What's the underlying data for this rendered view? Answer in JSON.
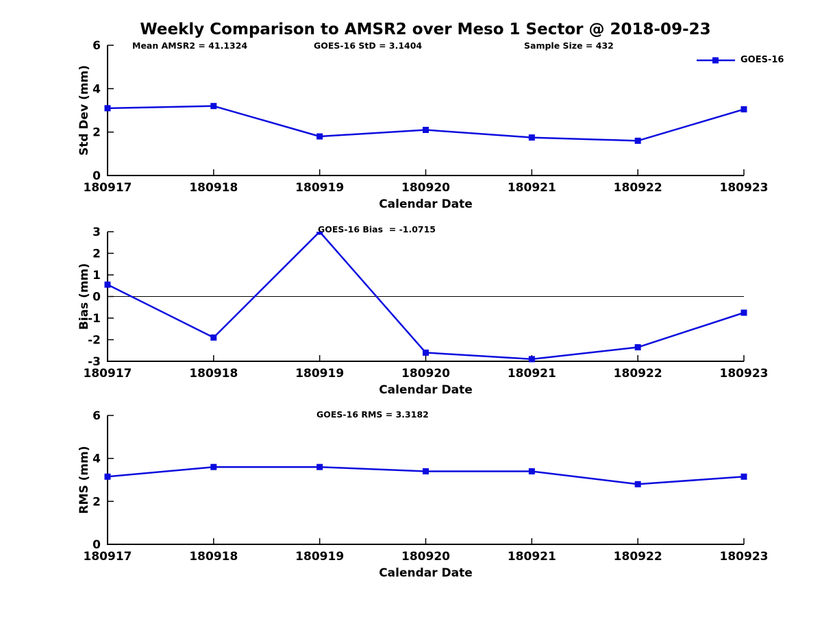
{
  "figure": {
    "title": "Weekly Comparison to AMSR2 over Meso 1 Sector @ 2018-09-23",
    "background_color": "#ffffff",
    "line_color": "#0b0bdf",
    "axis_color": "#000000"
  },
  "legend": {
    "label": "GOES-16",
    "position": "top-right",
    "marker": "filled-square",
    "color": "#0b0bdf"
  },
  "annotations": {
    "mean_amsr2": "Mean AMSR2 = 41.1324",
    "goes16_std": "GOES-16 StD = 3.1404",
    "sample_size": "Sample Size = 432",
    "goes16_bias": "GOES-16 Bias  = -1.0715",
    "goes16_rms": "GOES-16 RMS = 3.3182"
  },
  "chart_data": [
    {
      "type": "line",
      "panel": "std-dev",
      "xlabel": "Calendar Date",
      "ylabel": "Std Dev (mm)",
      "categories": [
        "180917",
        "180918",
        "180919",
        "180920",
        "180921",
        "180922",
        "180923"
      ],
      "series": [
        {
          "name": "GOES-16",
          "values": [
            3.1,
            3.2,
            1.8,
            2.1,
            1.75,
            1.6,
            3.05
          ]
        }
      ],
      "ylim": [
        0,
        6
      ],
      "yticks": [
        0,
        2,
        4,
        6
      ],
      "grid": false,
      "zero_line": false,
      "legend_position": "top-right"
    },
    {
      "type": "line",
      "panel": "bias",
      "xlabel": "Calendar Date",
      "ylabel": "Bias (mm)",
      "categories": [
        "180917",
        "180918",
        "180919",
        "180920",
        "180921",
        "180922",
        "180923"
      ],
      "series": [
        {
          "name": "GOES-16",
          "values": [
            0.55,
            -1.9,
            3.0,
            -2.6,
            -2.9,
            -2.35,
            -0.75
          ]
        }
      ],
      "ylim": [
        -3,
        3
      ],
      "yticks": [
        -3,
        -2,
        -1,
        0,
        1,
        2,
        3
      ],
      "grid": false,
      "zero_line": true,
      "legend_position": "none"
    },
    {
      "type": "line",
      "panel": "rms",
      "xlabel": "Calendar Date",
      "ylabel": "RMS (mm)",
      "categories": [
        "180917",
        "180918",
        "180919",
        "180920",
        "180921",
        "180922",
        "180923"
      ],
      "series": [
        {
          "name": "GOES-16",
          "values": [
            3.15,
            3.6,
            3.6,
            3.4,
            3.4,
            2.8,
            3.15
          ]
        }
      ],
      "ylim": [
        0,
        6
      ],
      "yticks": [
        0,
        2,
        4,
        6
      ],
      "grid": false,
      "zero_line": false,
      "legend_position": "none"
    }
  ]
}
